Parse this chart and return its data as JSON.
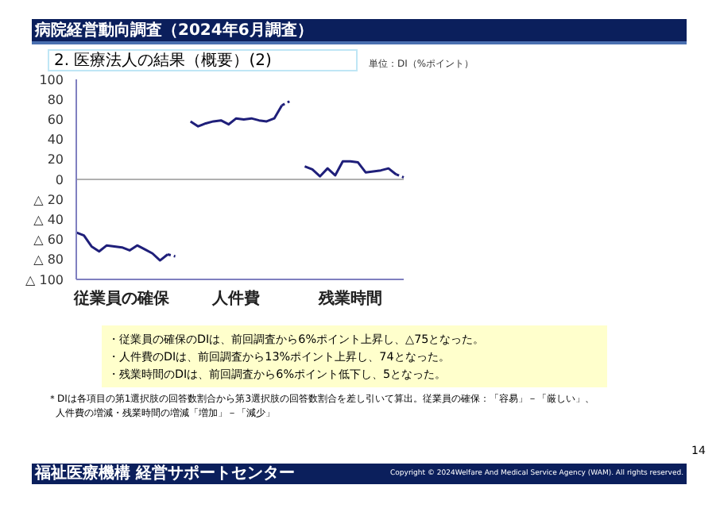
{
  "chart_data": {
    "type": "line",
    "title": "病院経営動向調査（2024年6月調査）",
    "subtitle": "2. 医療法人の結果（概要）(2)",
    "ylabel": "単位：DI（%ポイント）",
    "categories": [
      null,
      null,
      null,
      null,
      null,
      null,
      "従業員の確保",
      null,
      null,
      null,
      null,
      null,
      null,
      null,
      null,
      null,
      null,
      null,
      null,
      null,
      null,
      "人件費",
      null,
      null,
      null,
      null,
      null,
      null,
      null,
      null,
      null,
      null,
      null,
      null,
      null,
      null,
      "残業時間",
      null,
      null,
      null,
      null,
      null,
      null,
      null
    ],
    "series": [
      {
        "color": "#1f1f7a",
        "line_style": "solid",
        "values": [
          -53,
          -56,
          -67,
          -72,
          -66,
          -67,
          -68,
          -71,
          -66,
          -70,
          -74,
          -81,
          -75,
          null,
          null,
          58,
          53,
          56,
          58,
          59,
          55,
          61,
          60,
          61,
          59,
          58,
          61,
          74,
          null,
          null,
          13,
          10,
          3,
          11,
          4,
          18,
          18,
          17,
          7,
          8,
          9,
          11,
          5,
          null
        ]
      },
      {
        "color": "#1f1f7a",
        "line_style": "dotted",
        "values": [
          null,
          null,
          null,
          null,
          null,
          null,
          null,
          null,
          null,
          null,
          null,
          null,
          -75,
          -77,
          null,
          null,
          null,
          null,
          null,
          null,
          null,
          null,
          null,
          null,
          null,
          null,
          null,
          74,
          78,
          null,
          null,
          null,
          null,
          null,
          null,
          null,
          null,
          null,
          null,
          null,
          null,
          null,
          5,
          2
        ]
      }
    ],
    "ylim": [
      -100,
      100
    ],
    "yticks": [
      {
        "value": -100,
        "label": "△ 100"
      },
      {
        "value": -80,
        "label": "△ 80"
      },
      {
        "value": -60,
        "label": "△ 60"
      },
      {
        "value": -40,
        "label": "△ 40"
      },
      {
        "value": -20,
        "label": "△ 20"
      },
      0,
      20,
      40,
      60,
      80,
      100
    ],
    "ref_lines": [
      {
        "axis": "y",
        "value": 0,
        "color": "#b0b0b0"
      }
    ],
    "marker": "none",
    "grid": false,
    "legend": false,
    "annotations": [
      "・従業員の確保のDIは、前回調査から6%ポイント上昇し、△75となった。",
      "・人件費のDIは、前回調査から13%ポイント上昇し、74となった。",
      "・残業時間のDIは、前回調査から6%ポイント低下し、5となった。",
      "＊DIは各項目の第1選択肢の回答数割合から第3選択肢の回答数割合を差し引いて算出。従業員の確保：「容易」－「厳しい」、",
      "人件費の増減・残業時間の増減「増加」－「減少」",
      "福祉医療機構 経営サポートセンター",
      "Copyright © 2024Welfare And Medical Service Agency (WAM). All rights reserved.",
      "14"
    ]
  }
}
